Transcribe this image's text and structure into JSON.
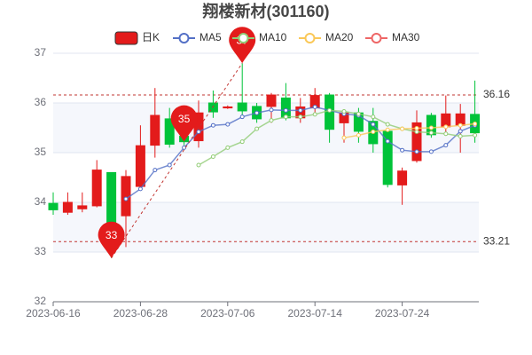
{
  "chart_data": {
    "type": "candlestick",
    "title": "翔楼新材(301160)",
    "categories": [
      "2023-06-16",
      null,
      null,
      null,
      null,
      null,
      "2023-06-28",
      null,
      null,
      null,
      null,
      null,
      "2023-07-06",
      null,
      null,
      null,
      null,
      null,
      "2023-07-14",
      null,
      null,
      null,
      null,
      null,
      "2023-07-24",
      null,
      null,
      null,
      null,
      null
    ],
    "candles": {
      "name": "日K",
      "up_color": "#e31b1b",
      "down_color": "#00c339",
      "open": [
        33.98,
        33.8,
        33.87,
        33.93,
        34.6,
        33.73,
        34.32,
        35.15,
        35.68,
        35.33,
        35.24,
        36.0,
        35.9,
        36.0,
        35.93,
        35.93,
        36.1,
        35.7,
        35.9,
        36.16,
        35.6,
        35.8,
        35.63,
        35.43,
        34.35,
        34.84,
        35.75,
        35.52,
        35.55,
        35.77
      ],
      "close": [
        33.85,
        34.0,
        33.93,
        34.65,
        33.4,
        34.52,
        35.14,
        35.75,
        35.17,
        35.22,
        35.8,
        35.82,
        35.92,
        35.84,
        35.68,
        36.16,
        35.7,
        35.92,
        36.15,
        35.47,
        35.8,
        35.43,
        35.18,
        34.36,
        34.63,
        35.6,
        35.36,
        35.78,
        35.78,
        35.4
      ],
      "high": [
        34.2,
        34.2,
        34.2,
        34.85,
        34.6,
        34.65,
        35.55,
        36.3,
        35.9,
        35.4,
        36.05,
        36.25,
        35.95,
        36.8,
        36.0,
        36.2,
        36.4,
        36.1,
        36.3,
        36.2,
        35.85,
        35.9,
        35.9,
        35.5,
        34.7,
        35.85,
        35.8,
        36.15,
        35.98,
        36.45
      ],
      "low": [
        33.75,
        33.75,
        33.8,
        33.9,
        32.88,
        33.1,
        34.25,
        34.9,
        35.1,
        35.15,
        35.1,
        35.7,
        35.88,
        35.75,
        35.6,
        35.6,
        35.65,
        35.6,
        35.8,
        35.2,
        35.2,
        35.2,
        35.0,
        34.3,
        33.95,
        34.8,
        35.3,
        35.4,
        35.0,
        35.2
      ]
    },
    "series": [
      {
        "name": "MA5",
        "color": "#5470c6",
        "values": [
          null,
          null,
          null,
          null,
          null,
          34.07,
          34.27,
          34.65,
          34.75,
          35.1,
          35.42,
          35.55,
          35.57,
          35.72,
          35.8,
          35.86,
          35.85,
          35.85,
          35.92,
          35.85,
          35.78,
          35.75,
          35.57,
          35.23,
          35.05,
          35.02,
          35.02,
          35.15,
          35.43,
          35.55
        ]
      },
      {
        "name": "MA10",
        "color": "#91cc75",
        "values": [
          null,
          null,
          null,
          null,
          null,
          null,
          null,
          null,
          null,
          null,
          34.75,
          34.92,
          35.1,
          35.22,
          35.48,
          35.65,
          35.72,
          35.72,
          35.77,
          35.85,
          35.83,
          35.78,
          35.72,
          35.57,
          35.48,
          35.42,
          35.4,
          35.38,
          35.33,
          35.35
        ]
      },
      {
        "name": "MA20",
        "color": "#fac858",
        "values": [
          null,
          null,
          null,
          null,
          null,
          null,
          null,
          null,
          null,
          null,
          null,
          null,
          null,
          null,
          null,
          null,
          null,
          null,
          null,
          null,
          35.3,
          35.35,
          35.42,
          35.46,
          35.48,
          35.49,
          35.5,
          35.52,
          35.55,
          35.58
        ]
      },
      {
        "name": "MA30",
        "color": "#ee6666",
        "values": [
          null,
          null,
          null,
          null,
          null,
          null,
          null,
          null,
          null,
          null,
          null,
          null,
          null,
          null,
          null,
          null,
          null,
          null,
          null,
          null,
          null,
          null,
          null,
          null,
          null,
          null,
          null,
          null,
          null,
          null
        ]
      }
    ],
    "markers": [
      {
        "label": "33",
        "value": 32.88
      },
      {
        "label": "35",
        "value": 35.22
      },
      {
        "label": "37",
        "value": 36.8
      }
    ],
    "mark_lines": [
      36.16,
      33.21
    ],
    "ylim": [
      32,
      37
    ],
    "yticks": [
      32,
      33,
      34,
      35,
      36,
      37
    ],
    "grid": true
  }
}
